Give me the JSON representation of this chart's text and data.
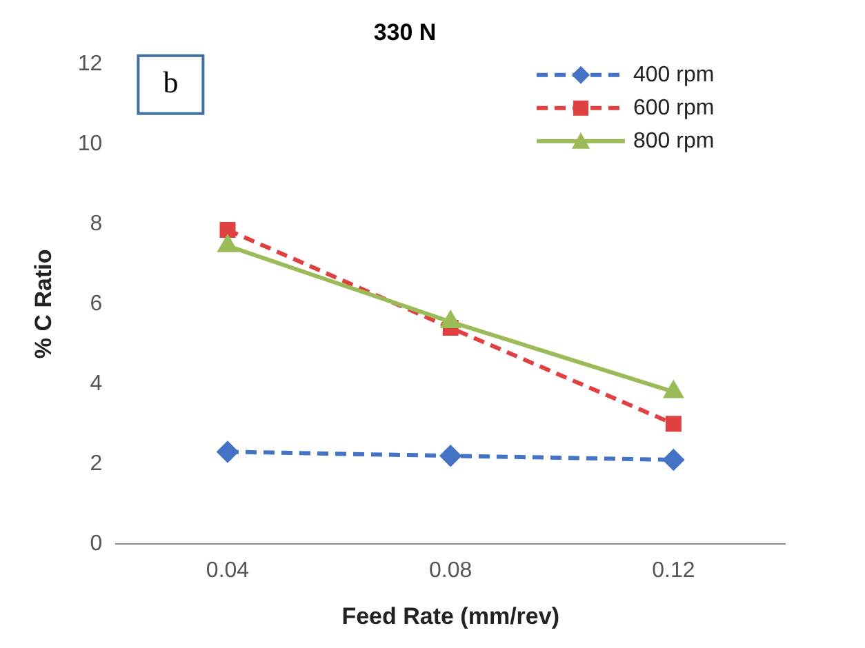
{
  "chart_data": {
    "type": "line",
    "title": "330 N",
    "xlabel": "Feed Rate (mm/rev)",
    "ylabel": "% C Ratio",
    "annotations": [
      "b"
    ],
    "categories": [
      "0.04",
      "0.08",
      "0.12"
    ],
    "series": [
      {
        "name": "400 rpm",
        "color": "#4472c4",
        "values": [
          2.3,
          2.2,
          2.1
        ],
        "marker": "diamond",
        "line_style": "dashed"
      },
      {
        "name": "600 rpm",
        "color": "#e04040",
        "values": [
          7.85,
          5.4,
          3.0
        ],
        "marker": "square",
        "line_style": "dashed"
      },
      {
        "name": "800 rpm",
        "color": "#9bbb59",
        "values": [
          7.45,
          5.55,
          3.8
        ],
        "marker": "triangle",
        "line_style": "solid"
      }
    ],
    "ylim": [
      0,
      12
    ],
    "yticks": [
      0,
      2,
      4,
      6,
      8,
      10,
      12
    ],
    "grid": false,
    "legend": "top right"
  }
}
